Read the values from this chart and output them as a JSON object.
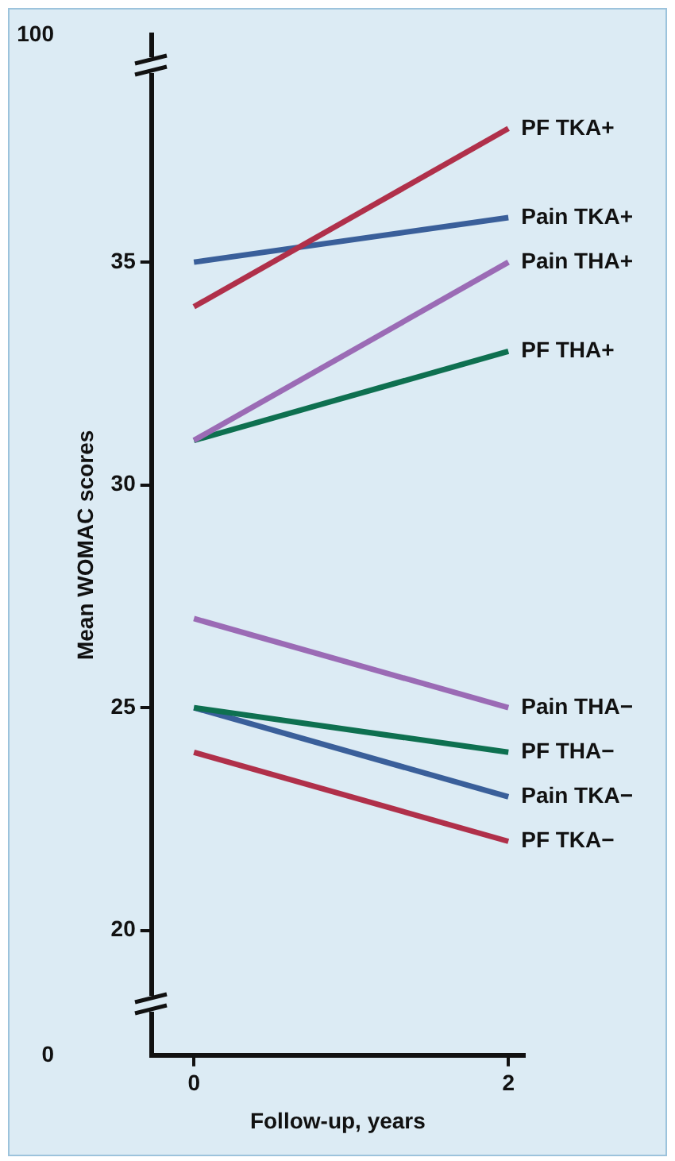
{
  "chart_data": {
    "type": "line",
    "xlabel": "Follow-up, years",
    "ylabel": "Mean WOMAC scores",
    "x": [
      0,
      2
    ],
    "xlim": [
      -0.27,
      2.1
    ],
    "xticks": [
      0,
      2
    ],
    "ylim": [
      17.2,
      40.1
    ],
    "yticks": [
      20,
      25,
      30,
      35
    ],
    "grid": false,
    "legend": false,
    "marker": "none",
    "line_style": "solid",
    "annotations": [
      "0",
      "100"
    ],
    "series": [
      {
        "name": "PF TKA+",
        "color": "#b0304a",
        "values": [
          34,
          38
        ]
      },
      {
        "name": "Pain TKA+",
        "color": "#3a5f9a",
        "values": [
          35,
          36
        ]
      },
      {
        "name": "Pain THA+",
        "color": "#9b6bb5",
        "values": [
          31,
          35
        ]
      },
      {
        "name": "PF THA+",
        "color": "#0e7050",
        "values": [
          31,
          33
        ]
      },
      {
        "name": "Pain THA−",
        "color": "#9b6bb5",
        "values": [
          27,
          25
        ]
      },
      {
        "name": "PF THA−",
        "color": "#0e7050",
        "values": [
          25,
          24
        ]
      },
      {
        "name": "Pain TKA−",
        "color": "#3a5f9a",
        "values": [
          25,
          23
        ]
      },
      {
        "name": "PF TKA−",
        "color": "#b0304a",
        "values": [
          24,
          22
        ]
      }
    ]
  }
}
